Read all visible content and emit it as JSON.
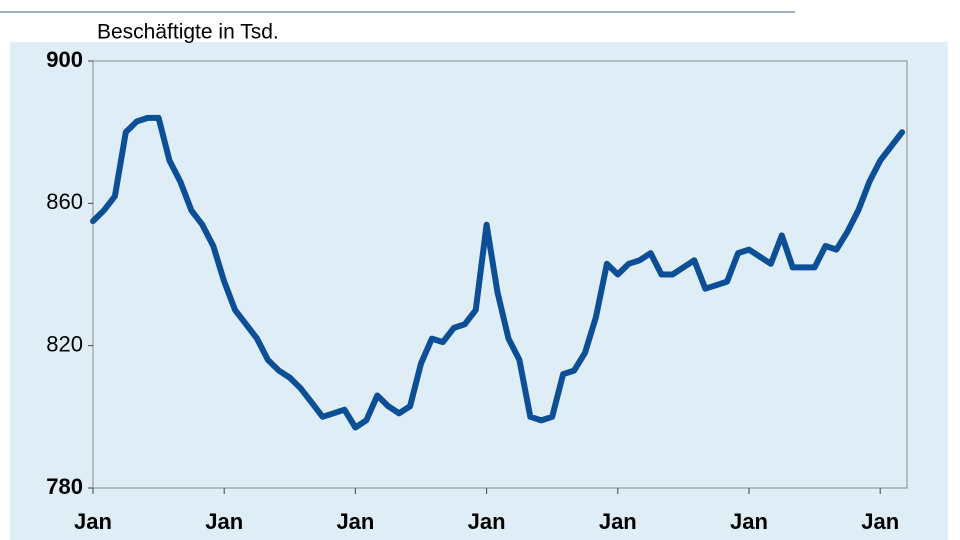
{
  "chart_data": {
    "type": "line",
    "title": "Beschäftigte in Tsd.",
    "categories": [
      "Jan",
      null,
      null,
      null,
      null,
      null,
      null,
      null,
      null,
      null,
      null,
      null,
      "Jan",
      null,
      null,
      null,
      null,
      null,
      null,
      null,
      null,
      null,
      null,
      null,
      "Jan",
      null,
      null,
      null,
      null,
      null,
      null,
      null,
      null,
      null,
      null,
      null,
      "Jan",
      null,
      null,
      null,
      null,
      null,
      null,
      null,
      null,
      null,
      null,
      null,
      "Jan",
      null,
      null,
      null,
      null,
      null,
      null,
      null,
      null,
      null,
      null,
      null,
      "Jan",
      null,
      null,
      null,
      null,
      null,
      null,
      null,
      null,
      null,
      null,
      null,
      "Jan",
      null,
      null
    ],
    "series": [
      {
        "color": "#0d4f97",
        "values": [
          855,
          858,
          862,
          880,
          883,
          884,
          884,
          872,
          866,
          858,
          854,
          848,
          838,
          830,
          826,
          822,
          816,
          813,
          811,
          808,
          804,
          800,
          801,
          802,
          797,
          799,
          806,
          803,
          801,
          803,
          815,
          822,
          821,
          825,
          826,
          830,
          854,
          835,
          822,
          816,
          800,
          799,
          800,
          812,
          813,
          818,
          828,
          843,
          840,
          843,
          844,
          846,
          840,
          840,
          842,
          844,
          836,
          837,
          838,
          846,
          847,
          845,
          843,
          851,
          842,
          842,
          842,
          848,
          847,
          852,
          858,
          866,
          872,
          876,
          880
        ]
      }
    ],
    "ylim": [
      780,
      900
    ],
    "yticks": [
      780,
      820,
      860,
      900
    ]
  }
}
